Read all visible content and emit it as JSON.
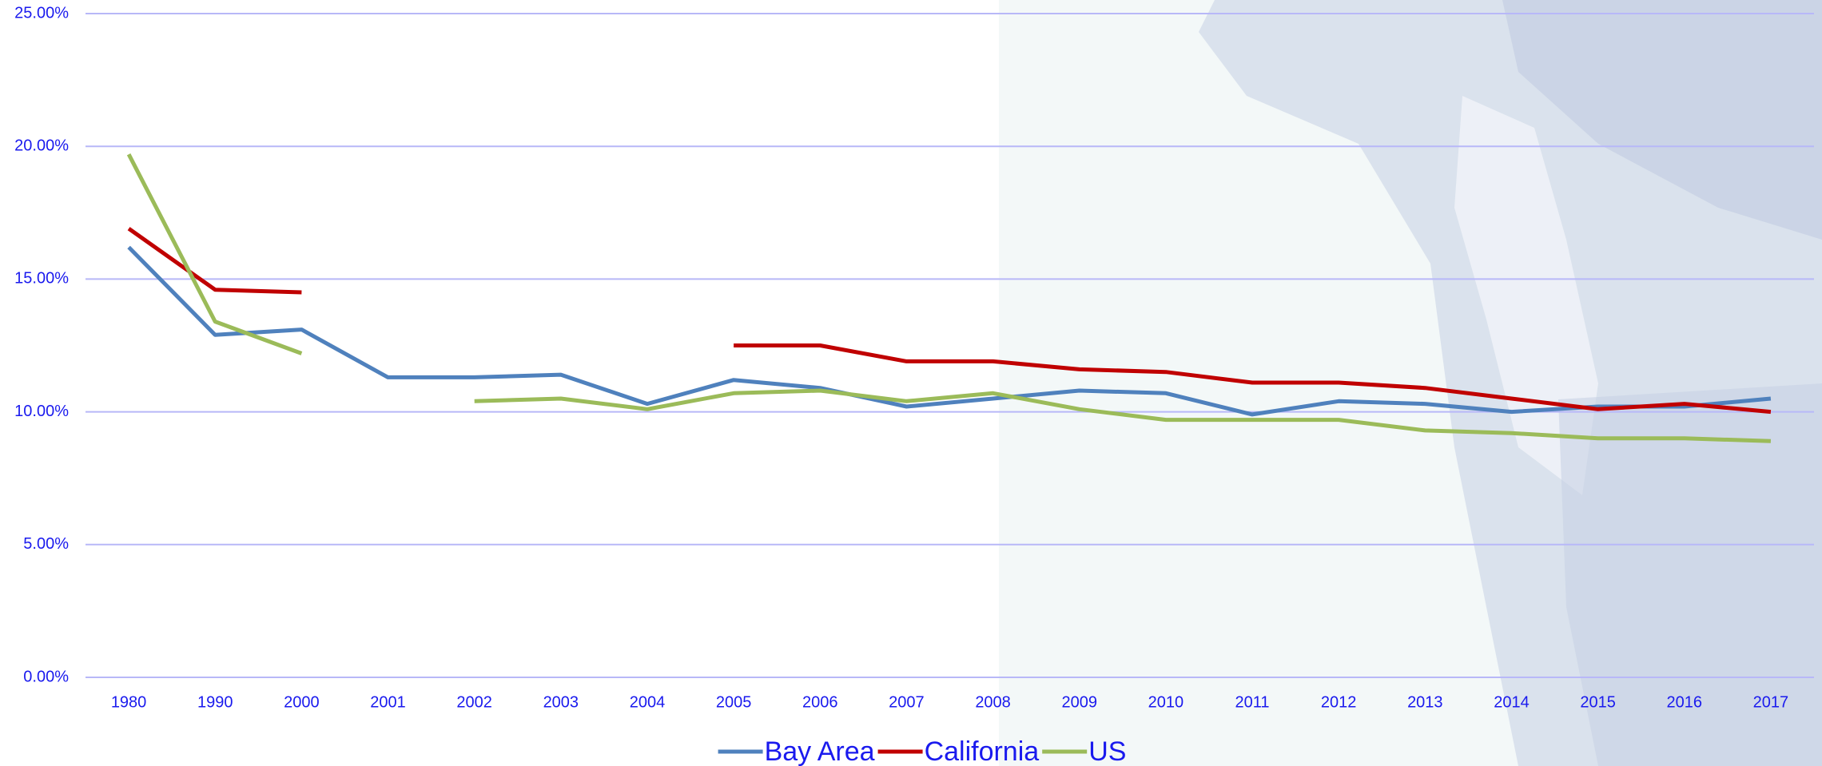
{
  "chart_data": {
    "type": "line",
    "categories": [
      "1980",
      "1990",
      "2000",
      "2001",
      "2002",
      "2003",
      "2004",
      "2005",
      "2006",
      "2007",
      "2008",
      "2009",
      "2010",
      "2011",
      "2012",
      "2013",
      "2014",
      "2015",
      "2016",
      "2017"
    ],
    "series": [
      {
        "name": "Bay Area",
        "color": "#4f81bd",
        "values": [
          16.2,
          12.9,
          13.1,
          11.3,
          11.3,
          11.4,
          10.3,
          11.2,
          10.9,
          10.2,
          10.5,
          10.8,
          10.7,
          9.9,
          10.4,
          10.3,
          10.0,
          10.2,
          10.2,
          10.5
        ]
      },
      {
        "name": "California",
        "color": "#c00000",
        "values": [
          16.9,
          14.6,
          14.5,
          null,
          null,
          null,
          null,
          12.5,
          12.5,
          11.9,
          11.9,
          11.6,
          11.5,
          11.1,
          11.1,
          10.9,
          10.5,
          10.1,
          10.3,
          10.0
        ]
      },
      {
        "name": "US",
        "color": "#9bbb59",
        "values": [
          19.7,
          13.4,
          12.2,
          null,
          10.4,
          10.5,
          10.1,
          10.7,
          10.8,
          10.4,
          10.7,
          10.1,
          9.7,
          9.7,
          9.7,
          9.3,
          9.2,
          9.0,
          9.0,
          8.9
        ]
      }
    ],
    "ylim": [
      0,
      25
    ],
    "yticks": [
      {
        "value": 0,
        "label": "0.00%"
      },
      {
        "value": 5,
        "label": "5.00%"
      },
      {
        "value": 10,
        "label": "10.00%"
      },
      {
        "value": 15,
        "label": "15.00%"
      },
      {
        "value": 20,
        "label": "20.00%"
      },
      {
        "value": 25,
        "label": "25.00%"
      }
    ],
    "grid": true,
    "legend": "bottom"
  }
}
